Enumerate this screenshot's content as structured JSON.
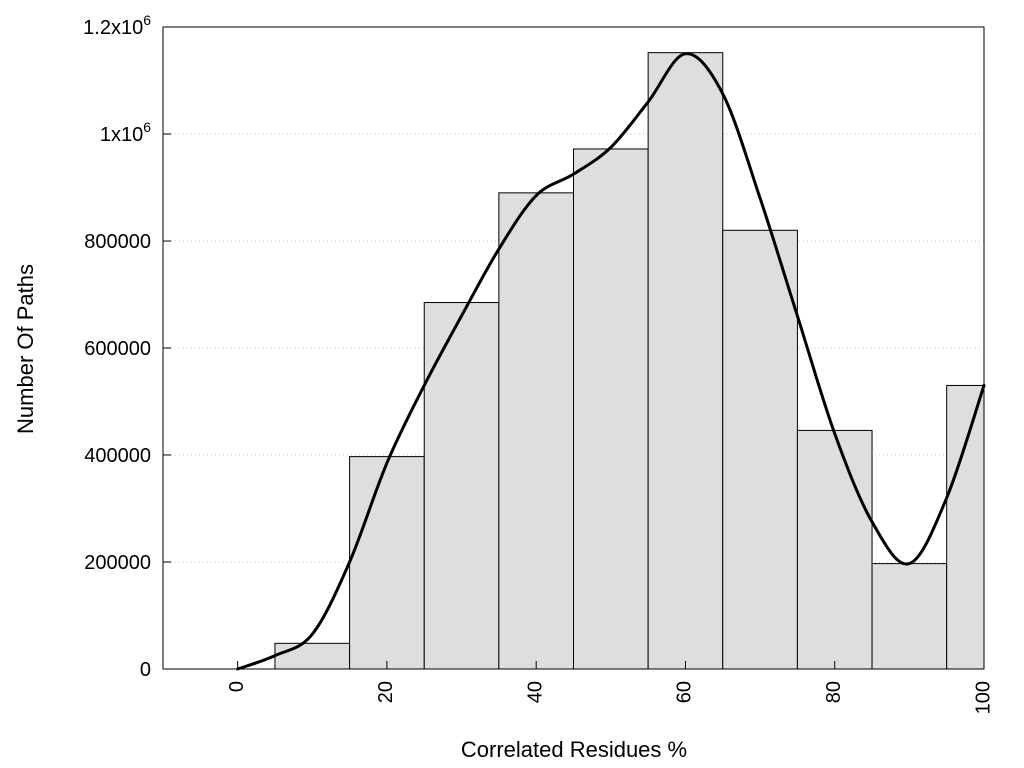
{
  "chart_data": {
    "type": "bar",
    "title": "",
    "xlabel": "Correlated Residues %",
    "ylabel": "Number Of Paths",
    "xlim": [
      -10,
      100
    ],
    "ylim": [
      0,
      1200000
    ],
    "grid": true,
    "bin_width": 10,
    "x_ticks": [
      0,
      20,
      40,
      60,
      80,
      100
    ],
    "x_tick_labels": [
      "0",
      "20",
      "40",
      "60",
      "80",
      "100"
    ],
    "y_ticks": [
      0,
      200000,
      400000,
      600000,
      800000,
      1000000,
      1200000
    ],
    "y_tick_labels": [
      {
        "base": "0",
        "exp": ""
      },
      {
        "base": "200000",
        "exp": ""
      },
      {
        "base": "400000",
        "exp": ""
      },
      {
        "base": "600000",
        "exp": ""
      },
      {
        "base": "800000",
        "exp": ""
      },
      {
        "base": "1x10",
        "exp": "6"
      },
      {
        "base": "1.2x10",
        "exp": "6"
      }
    ],
    "bars": [
      {
        "x": 10,
        "value": 48000
      },
      {
        "x": 20,
        "value": 397000
      },
      {
        "x": 30,
        "value": 685000
      },
      {
        "x": 40,
        "value": 890000
      },
      {
        "x": 50,
        "value": 972000
      },
      {
        "x": 60,
        "value": 1152000
      },
      {
        "x": 70,
        "value": 820000
      },
      {
        "x": 80,
        "value": 446000
      },
      {
        "x": 90,
        "value": 197000
      },
      {
        "x": 100,
        "value": 530000
      }
    ],
    "curve": [
      {
        "x": 0,
        "y": 0
      },
      {
        "x": 5,
        "y": 25000
      },
      {
        "x": 10,
        "y": 65000
      },
      {
        "x": 15,
        "y": 200000
      },
      {
        "x": 20,
        "y": 385000
      },
      {
        "x": 25,
        "y": 530000
      },
      {
        "x": 30,
        "y": 660000
      },
      {
        "x": 35,
        "y": 785000
      },
      {
        "x": 40,
        "y": 885000
      },
      {
        "x": 45,
        "y": 925000
      },
      {
        "x": 50,
        "y": 975000
      },
      {
        "x": 55,
        "y": 1060000
      },
      {
        "x": 60,
        "y": 1150000
      },
      {
        "x": 65,
        "y": 1075000
      },
      {
        "x": 70,
        "y": 880000
      },
      {
        "x": 75,
        "y": 660000
      },
      {
        "x": 80,
        "y": 440000
      },
      {
        "x": 85,
        "y": 275000
      },
      {
        "x": 90,
        "y": 197000
      },
      {
        "x": 95,
        "y": 320000
      },
      {
        "x": 100,
        "y": 530000
      }
    ],
    "colors": {
      "bar_fill": "#dedede",
      "bar_stroke": "#000000",
      "curve": "#000000",
      "grid": "#c8c8c8"
    }
  }
}
